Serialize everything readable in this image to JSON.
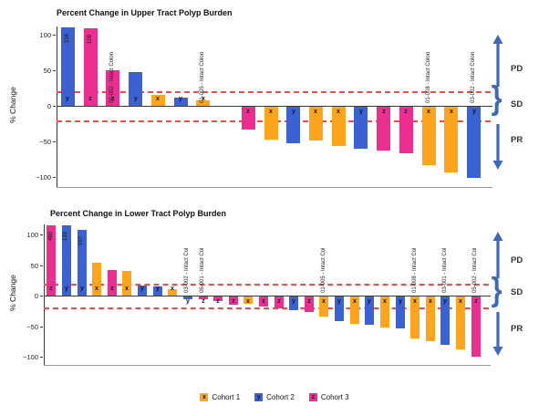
{
  "figure": {
    "background": "#ffffff"
  },
  "colors": {
    "cohort1": "#FFA41B",
    "cohort2": "#3A62D2",
    "cohort3": "#EC2E91",
    "reference_line": "#EB4D4D",
    "annotation_blue": "#3D6AB7",
    "axis": "#3a3a3a"
  },
  "legend": {
    "items": [
      {
        "letter": "x",
        "label": "Cohort 1",
        "color": "#FFA41B"
      },
      {
        "letter": "y",
        "label": "Cohort 2",
        "color": "#3A62D2"
      },
      {
        "letter": "z",
        "label": "Cohort 3",
        "color": "#EC2E91"
      }
    ]
  },
  "chart_data": [
    {
      "id": "upper",
      "type": "bar",
      "title": "Percent Change in Upper Tract Polyp Burden",
      "ylabel": "% Change",
      "yticks": [
        100,
        50,
        0,
        -50,
        -100
      ],
      "ylim": [
        -110,
        115
      ],
      "reference_lines": [
        20,
        -20
      ],
      "response_labels": [
        "PD",
        "SD",
        "PR"
      ],
      "bars": [
        {
          "letter": "y",
          "cohort": 2,
          "value": 216,
          "value_label": "216"
        },
        {
          "letter": "z",
          "cohort": 3,
          "value": 109,
          "value_label": "109"
        },
        {
          "letter": "z",
          "cohort": 3,
          "value": 50,
          "label": "06-002 - Intact Colon"
        },
        {
          "letter": "y",
          "cohort": 2,
          "value": 48
        },
        {
          "letter": "x",
          "cohort": 1,
          "value": 16
        },
        {
          "letter": "y",
          "cohort": 2,
          "value": 12
        },
        {
          "letter": "x",
          "cohort": 1,
          "value": 8,
          "label": "01-005 - Intact Colon"
        },
        {
          "letter": "",
          "cohort": 0,
          "value": 0
        },
        {
          "letter": "z",
          "cohort": 3,
          "value": -32
        },
        {
          "letter": "x",
          "cohort": 1,
          "value": -46
        },
        {
          "letter": "y",
          "cohort": 2,
          "value": -51
        },
        {
          "letter": "x",
          "cohort": 1,
          "value": -48
        },
        {
          "letter": "x",
          "cohort": 1,
          "value": -55
        },
        {
          "letter": "y",
          "cohort": 2,
          "value": -59
        },
        {
          "letter": "z",
          "cohort": 3,
          "value": -62
        },
        {
          "letter": "z",
          "cohort": 3,
          "value": -65
        },
        {
          "letter": "x",
          "cohort": 1,
          "value": -82,
          "label": "01-008 - Intact Colon"
        },
        {
          "letter": "x",
          "cohort": 1,
          "value": -92
        },
        {
          "letter": "y",
          "cohort": 2,
          "value": -100,
          "label": "03-002 - Intact Colon"
        }
      ]
    },
    {
      "id": "lower",
      "type": "bar",
      "title": "Percent Change in Lower Tract Polyp Burden",
      "ylabel": "% Change",
      "yticks": [
        100,
        50,
        0,
        -50,
        -100
      ],
      "ylim": [
        -110,
        115
      ],
      "reference_lines": [
        20,
        -20
      ],
      "response_labels": [
        "PD",
        "SD",
        "PR"
      ],
      "bars": [
        {
          "letter": "z",
          "cohort": 3,
          "value": 460,
          "value_label": "460"
        },
        {
          "letter": "y",
          "cohort": 2,
          "value": 133,
          "value_label": "133"
        },
        {
          "letter": "y",
          "cohort": 2,
          "value": 107,
          "value_label": "107"
        },
        {
          "letter": "x",
          "cohort": 1,
          "value": 53
        },
        {
          "letter": "z",
          "cohort": 3,
          "value": 42
        },
        {
          "letter": "x",
          "cohort": 1,
          "value": 41
        },
        {
          "letter": "y",
          "cohort": 2,
          "value": 16
        },
        {
          "letter": "y",
          "cohort": 2,
          "value": 15
        },
        {
          "letter": "x",
          "cohort": 1,
          "value": 10
        },
        {
          "letter": "y",
          "cohort": 2,
          "value": -4,
          "label": "03-002 - Intact Col"
        },
        {
          "letter": "z",
          "cohort": 3,
          "value": -5,
          "label": "06-001 - Intact Col"
        },
        {
          "letter": "z",
          "cohort": 3,
          "value": -7
        },
        {
          "letter": "z",
          "cohort": 3,
          "value": -13
        },
        {
          "letter": "x",
          "cohort": 1,
          "value": -12
        },
        {
          "letter": "z",
          "cohort": 3,
          "value": -17
        },
        {
          "letter": "z",
          "cohort": 3,
          "value": -19
        },
        {
          "letter": "y",
          "cohort": 2,
          "value": -22
        },
        {
          "letter": "z",
          "cohort": 3,
          "value": -26
        },
        {
          "letter": "x",
          "cohort": 1,
          "value": -33,
          "label": "01-005 - Intact Col"
        },
        {
          "letter": "y",
          "cohort": 2,
          "value": -41
        },
        {
          "letter": "x",
          "cohort": 1,
          "value": -45
        },
        {
          "letter": "y",
          "cohort": 2,
          "value": -47
        },
        {
          "letter": "x",
          "cohort": 1,
          "value": -51
        },
        {
          "letter": "y",
          "cohort": 2,
          "value": -52
        },
        {
          "letter": "x",
          "cohort": 1,
          "value": -68,
          "label": "01-008 - Intact Col"
        },
        {
          "letter": "x",
          "cohort": 1,
          "value": -73
        },
        {
          "letter": "y",
          "cohort": 2,
          "value": -79,
          "label": "03-001 - Intact Col"
        },
        {
          "letter": "x",
          "cohort": 1,
          "value": -86
        },
        {
          "letter": "z",
          "cohort": 3,
          "value": -98,
          "label": "05-002 - Intact Col"
        }
      ]
    }
  ]
}
